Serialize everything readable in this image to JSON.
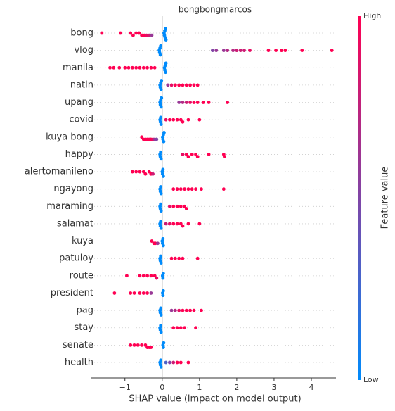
{
  "chart_data": {
    "type": "beeswarm",
    "title": "bongbongmarcos",
    "xlabel": "SHAP value (impact on model output)",
    "colorbar_label": "Feature value",
    "colorbar_high": "High",
    "colorbar_low": "Low",
    "cmap": [
      "#008bfb",
      "#ff0052"
    ],
    "xlim": [
      -1.9,
      4.66
    ],
    "xticks": [
      {
        "value": -1,
        "label": "−1"
      },
      0,
      1,
      2,
      3,
      4
    ],
    "grid": true,
    "categories": [
      "bong",
      "vlog",
      "manila",
      "natin",
      "upang",
      "covid",
      "kuya bong",
      "happy",
      "alertomanileno",
      "ngayong",
      "maraming",
      "salamat",
      "kuya",
      "patuloy",
      "route",
      "president",
      "pag",
      "stay",
      "senate",
      "health"
    ],
    "shap_values": [
      [
        -1.62,
        -1.12,
        -0.85,
        -0.78,
        -0.7,
        -0.62,
        -0.55,
        -0.48,
        -0.42,
        -0.35,
        -0.28,
        0.05,
        0.06,
        0.07,
        0.08,
        0.09,
        0.1
      ],
      [
        1.35,
        1.45,
        1.65,
        1.75,
        1.9,
        2.0,
        2.1,
        2.2,
        2.35,
        2.85,
        3.05,
        3.2,
        3.3,
        3.75,
        4.55,
        -0.08,
        -0.07,
        -0.06,
        -0.05,
        -0.04
      ],
      [
        -1.4,
        -1.3,
        -1.15,
        -1.0,
        -0.9,
        -0.8,
        -0.7,
        -0.6,
        -0.5,
        -0.4,
        -0.3,
        -0.2,
        0.06,
        0.07,
        0.08,
        0.09,
        0.1
      ],
      [
        -0.06,
        -0.05,
        -0.04,
        -0.03,
        -0.02,
        0.15,
        0.25,
        0.35,
        0.45,
        0.55,
        0.65,
        0.75,
        0.85,
        0.95
      ],
      [
        -0.06,
        -0.05,
        -0.04,
        -0.03,
        -0.02,
        0.45,
        0.55,
        0.65,
        0.75,
        0.85,
        0.95,
        1.1,
        1.25,
        1.75
      ],
      [
        -0.06,
        -0.05,
        -0.04,
        -0.03,
        0.1,
        0.2,
        0.3,
        0.4,
        0.5,
        0.55,
        0.7,
        1.0
      ],
      [
        -0.55,
        -0.5,
        -0.45,
        -0.4,
        -0.35,
        -0.3,
        -0.25,
        -0.2,
        -0.15,
        0.01,
        0.02,
        0.03,
        0.04,
        0.05
      ],
      [
        -0.06,
        -0.05,
        -0.04,
        -0.03,
        0.55,
        0.65,
        0.7,
        0.8,
        0.9,
        0.95,
        1.25,
        1.65,
        1.67
      ],
      [
        -0.8,
        -0.7,
        -0.6,
        -0.5,
        -0.45,
        -0.35,
        -0.3,
        -0.25,
        0.0,
        0.01,
        0.02,
        0.03
      ],
      [
        -0.06,
        -0.05,
        -0.04,
        -0.03,
        0.3,
        0.4,
        0.5,
        0.6,
        0.7,
        0.8,
        0.9,
        1.05,
        1.65
      ],
      [
        -0.06,
        -0.05,
        -0.04,
        -0.03,
        0.2,
        0.3,
        0.4,
        0.5,
        0.6,
        0.65
      ],
      [
        -0.06,
        -0.05,
        -0.04,
        -0.03,
        0.1,
        0.2,
        0.3,
        0.4,
        0.5,
        0.55,
        0.7,
        1.0
      ],
      [
        -0.28,
        -0.22,
        -0.18,
        -0.12,
        0.0,
        0.01,
        0.02,
        0.03
      ],
      [
        -0.06,
        -0.05,
        -0.04,
        -0.03,
        0.25,
        0.35,
        0.45,
        0.55,
        0.95
      ],
      [
        -0.95,
        -0.6,
        -0.5,
        -0.4,
        -0.3,
        -0.2,
        -0.15,
        0.01,
        0.02,
        0.03
      ],
      [
        -1.28,
        -0.85,
        -0.75,
        -0.6,
        -0.5,
        -0.4,
        -0.3,
        0.01,
        0.02,
        0.03
      ],
      [
        -0.06,
        -0.05,
        -0.04,
        -0.03,
        0.25,
        0.35,
        0.45,
        0.55,
        0.65,
        0.75,
        0.85,
        1.05
      ],
      [
        -0.06,
        -0.05,
        -0.04,
        -0.03,
        0.3,
        0.4,
        0.5,
        0.6,
        0.9
      ],
      [
        -0.85,
        -0.75,
        -0.65,
        -0.55,
        -0.45,
        -0.4,
        -0.35,
        -0.3,
        0.02,
        0.03,
        0.04
      ],
      [
        -0.06,
        -0.05,
        -0.04,
        -0.03,
        0.1,
        0.2,
        0.3,
        0.4,
        0.5,
        0.7
      ]
    ],
    "feature_values": [
      [
        1,
        1,
        1,
        1,
        1,
        1,
        1,
        1,
        0.9,
        0.8,
        0.6,
        0,
        0,
        0,
        0,
        0,
        0
      ],
      [
        0.5,
        0.6,
        0.6,
        0.7,
        0.7,
        0.8,
        0.8,
        0.8,
        0.9,
        1,
        1,
        1,
        1,
        1,
        1,
        0,
        0,
        0,
        0,
        0
      ],
      [
        1,
        1,
        1,
        1,
        1,
        1,
        1,
        1,
        1,
        1,
        1,
        1,
        0,
        0,
        0,
        0,
        0
      ],
      [
        0,
        0,
        0,
        0,
        0,
        0.6,
        0.9,
        1,
        1,
        1,
        1,
        1,
        1,
        1
      ],
      [
        0,
        0,
        0,
        0,
        0,
        0.6,
        0.7,
        0.8,
        0.9,
        1,
        1,
        1,
        1,
        1
      ],
      [
        0,
        0,
        0,
        0,
        0.9,
        1,
        1,
        1,
        1,
        1,
        1,
        1
      ],
      [
        1,
        1,
        1,
        1,
        1,
        1,
        0.9,
        0.6,
        0.5,
        0,
        0,
        0,
        0,
        0
      ],
      [
        0,
        0,
        0,
        0,
        0.9,
        1,
        1,
        1,
        1,
        1,
        1,
        1,
        1
      ],
      [
        1,
        1,
        1,
        1,
        1,
        1,
        1,
        0.8,
        0,
        0,
        0,
        0
      ],
      [
        0,
        0,
        0,
        0,
        1,
        1,
        1,
        1,
        1,
        1,
        1,
        1,
        1
      ],
      [
        0,
        0,
        0,
        0,
        0.9,
        1,
        1,
        1,
        1,
        1
      ],
      [
        0,
        0,
        0,
        0,
        0.8,
        0.9,
        1,
        1,
        1,
        1,
        1,
        1
      ],
      [
        1,
        1,
        1,
        0.6,
        0,
        0,
        0,
        0
      ],
      [
        0,
        0,
        0,
        0,
        1,
        1,
        1,
        1,
        1
      ],
      [
        1,
        1,
        1,
        1,
        1,
        1,
        0.9,
        0,
        0,
        0
      ],
      [
        1,
        1,
        1,
        1,
        1,
        1,
        0.6,
        0,
        0,
        0
      ],
      [
        0,
        0,
        0,
        0,
        0.6,
        0.7,
        0.9,
        1,
        1,
        1,
        1,
        1
      ],
      [
        0,
        0,
        0,
        0,
        1,
        1,
        1,
        1,
        1
      ],
      [
        1,
        1,
        1,
        1,
        1,
        1,
        1,
        1,
        0,
        0,
        0
      ],
      [
        0,
        0,
        0,
        0,
        0.3,
        0.5,
        0.8,
        1,
        1,
        1
      ]
    ]
  }
}
